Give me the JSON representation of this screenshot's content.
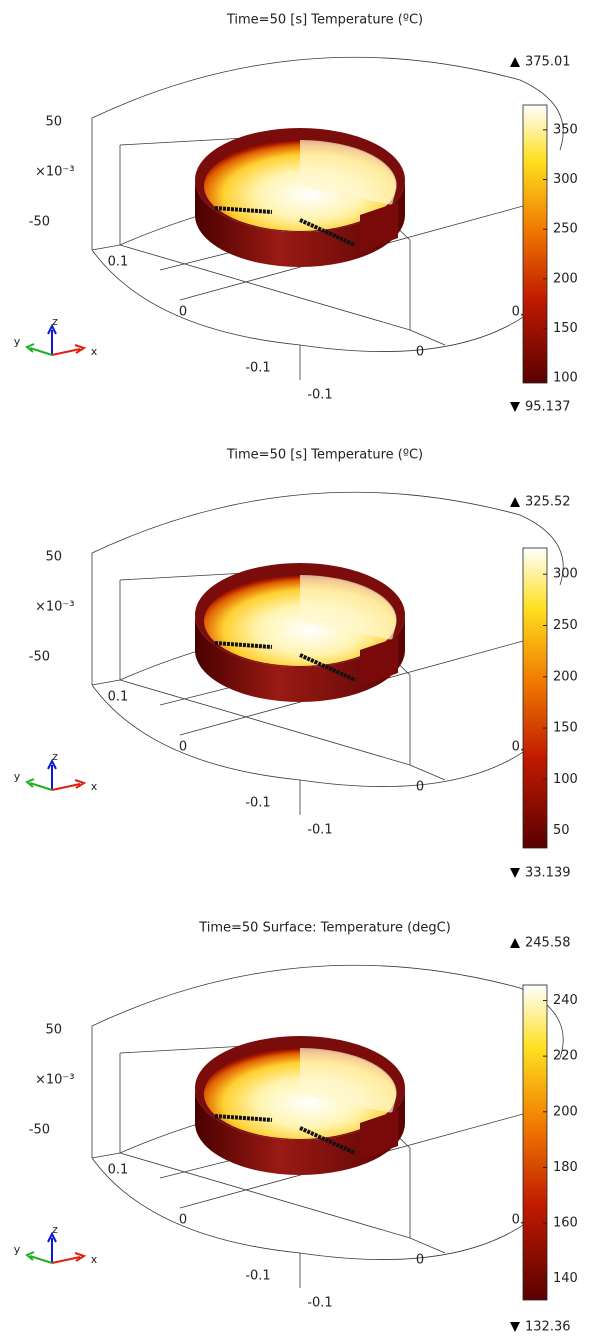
{
  "panels": [
    {
      "title": "Time=50 [s] Temperature (ºC)",
      "max": 375.01,
      "min": 95.137,
      "colorbar_ticks": [
        100,
        150,
        200,
        250,
        300,
        350
      ],
      "axis_labels": [
        "50",
        "×10⁻³",
        "-50",
        "0.1",
        "0",
        "-0.1",
        "-0.1",
        "0.1",
        "0"
      ],
      "triad": [
        "z",
        "y",
        "x"
      ]
    },
    {
      "title": "Time=50 [s] Temperature (ºC)",
      "max": 325.52,
      "min": 33.139,
      "colorbar_ticks": [
        50,
        100,
        150,
        200,
        250,
        300
      ],
      "axis_labels": [
        "50",
        "×10⁻³",
        "-50",
        "0.1",
        "0",
        "-0.1",
        "-0.1",
        "0.1",
        "0"
      ],
      "triad": [
        "z",
        "y",
        "x"
      ]
    },
    {
      "title": "Time=50   Surface: Temperature (degC)",
      "max": 245.58,
      "min": 132.36,
      "colorbar_ticks": [
        140,
        160,
        180,
        200,
        220,
        240
      ],
      "axis_labels": [
        "50",
        "×10⁻³",
        "-50",
        "0.1",
        "0",
        "-0.1",
        "-0.1",
        "0.1",
        "0"
      ],
      "triad": [
        "z",
        "y",
        "x"
      ]
    }
  ]
}
